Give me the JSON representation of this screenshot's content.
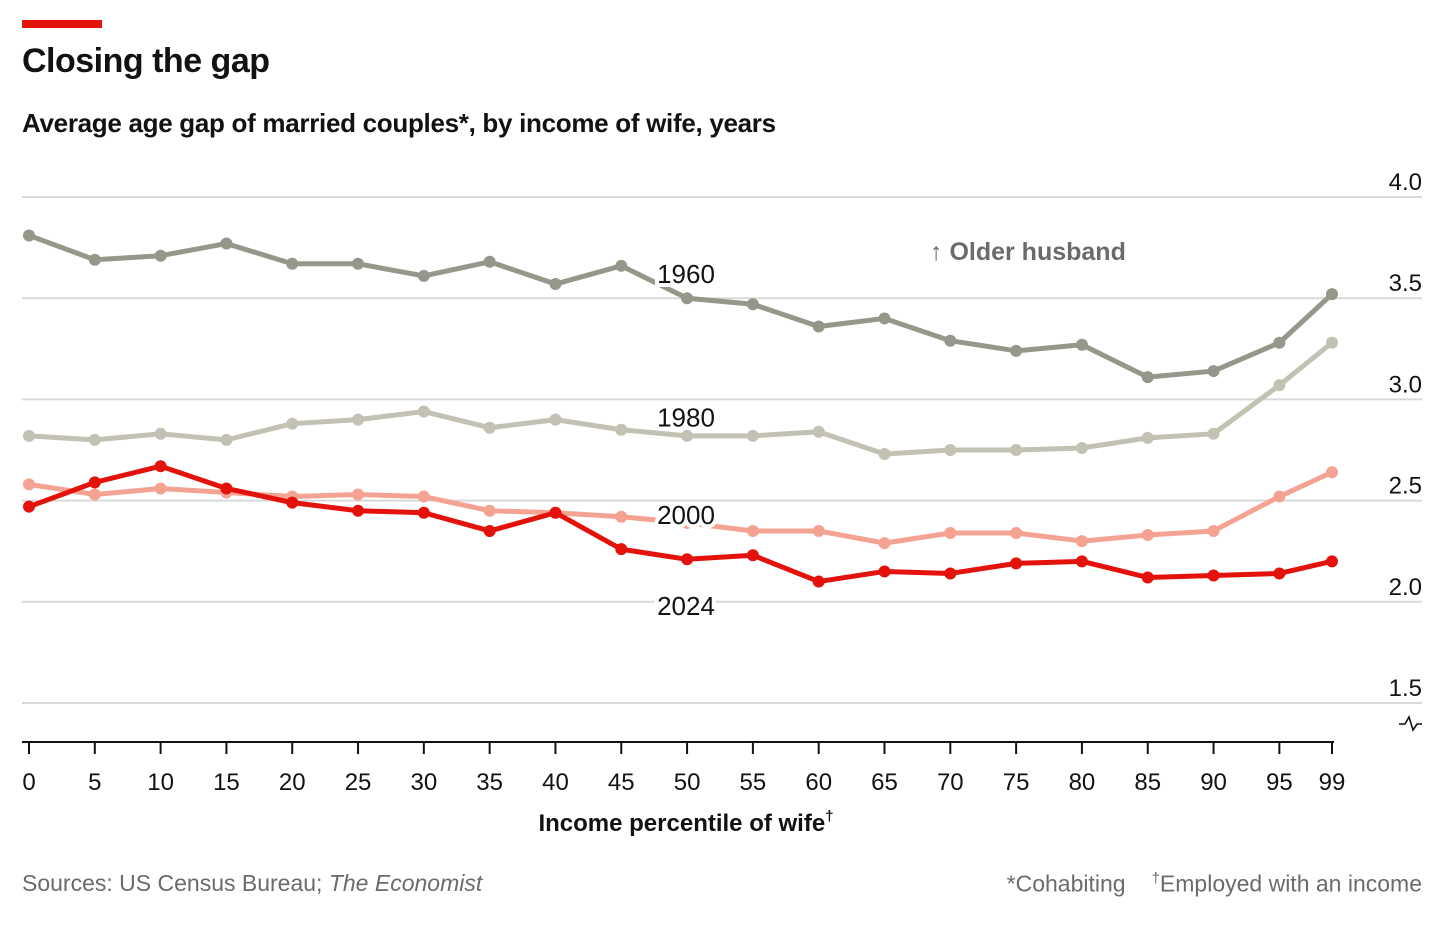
{
  "title": "Closing the gap",
  "subtitle": "Average age gap of married couples*, by income of wife, years",
  "annotation": "↑ Older husband",
  "footer": {
    "sources_label": "Sources: US Census Bureau; ",
    "sources_italic": "The Economist",
    "note1": "*Cohabiting",
    "note2_mark": "†",
    "note2": "Employed with an income"
  },
  "colors": {
    "accent": "#e3120b",
    "s1960": "#97968a",
    "s1980": "#c2c1b4",
    "s2000": "#f4a393",
    "s2024": "#e3120b",
    "grid": "#d9d9d9",
    "axis": "#121212"
  },
  "chart_data": {
    "type": "line",
    "xlabel": "Income percentile of wife",
    "xlabel_mark": "†",
    "ylabel": "",
    "y_axis_side": "right",
    "ylim": [
      1.5,
      4.0
    ],
    "yticks": [
      1.5,
      2.0,
      2.5,
      3.0,
      3.5,
      4.0
    ],
    "ytick_labels": [
      "1.5",
      "2.0",
      "2.5",
      "3.0",
      "3.5",
      "4.0"
    ],
    "x": [
      0,
      5,
      10,
      15,
      20,
      25,
      30,
      35,
      40,
      45,
      50,
      55,
      60,
      65,
      70,
      75,
      80,
      85,
      90,
      95,
      99
    ],
    "grid": true,
    "series": [
      {
        "name": "1960",
        "color_key": "s1960",
        "values": [
          3.81,
          3.69,
          3.71,
          3.77,
          3.67,
          3.67,
          3.61,
          3.68,
          3.57,
          3.66,
          3.5,
          3.47,
          3.36,
          3.4,
          3.29,
          3.24,
          3.27,
          3.11,
          3.14,
          3.28,
          3.52
        ]
      },
      {
        "name": "1980",
        "color_key": "s1980",
        "values": [
          2.82,
          2.8,
          2.83,
          2.8,
          2.88,
          2.9,
          2.94,
          2.86,
          2.9,
          2.85,
          2.82,
          2.82,
          2.84,
          2.73,
          2.75,
          2.75,
          2.76,
          2.81,
          2.83,
          3.07,
          3.28
        ]
      },
      {
        "name": "2000",
        "color_key": "s2000",
        "values": [
          2.58,
          2.53,
          2.56,
          2.54,
          2.52,
          2.53,
          2.52,
          2.45,
          2.44,
          2.42,
          2.39,
          2.35,
          2.35,
          2.29,
          2.34,
          2.34,
          2.3,
          2.33,
          2.35,
          2.52,
          2.64
        ]
      },
      {
        "name": "2024",
        "color_key": "s2024",
        "values": [
          2.47,
          2.59,
          2.67,
          2.56,
          2.49,
          2.45,
          2.44,
          2.35,
          2.44,
          2.26,
          2.21,
          2.23,
          2.1,
          2.15,
          2.14,
          2.19,
          2.2,
          2.12,
          2.13,
          2.14,
          2.2
        ]
      }
    ]
  }
}
